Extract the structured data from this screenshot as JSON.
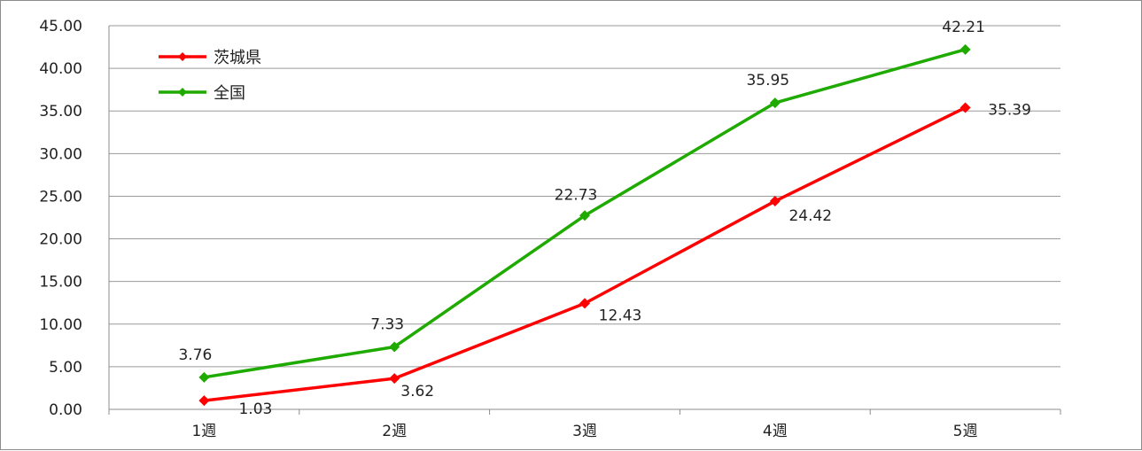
{
  "chart_data": {
    "type": "line",
    "title": "",
    "xlabel": "",
    "ylabel": "",
    "categories": [
      "1週",
      "2週",
      "3週",
      "4週",
      "5週"
    ],
    "ylim": [
      0,
      45
    ],
    "yticks": [
      "0.00",
      "5.00",
      "10.00",
      "15.00",
      "20.00",
      "25.00",
      "30.00",
      "35.00",
      "40.00",
      "45.00"
    ],
    "grid": true,
    "legend_position": "top-left",
    "series": [
      {
        "name": "茨城県",
        "color": "#ff0000",
        "values": [
          1.03,
          3.62,
          12.43,
          24.42,
          35.39
        ],
        "labels": [
          "1.03",
          "3.62",
          "12.43",
          "24.42",
          "35.39"
        ]
      },
      {
        "name": "全国",
        "color": "#1faa00",
        "values": [
          3.76,
          7.33,
          22.73,
          35.95,
          42.21
        ],
        "labels": [
          "3.76",
          "7.33",
          "22.73",
          "35.95",
          "42.21"
        ]
      }
    ]
  }
}
